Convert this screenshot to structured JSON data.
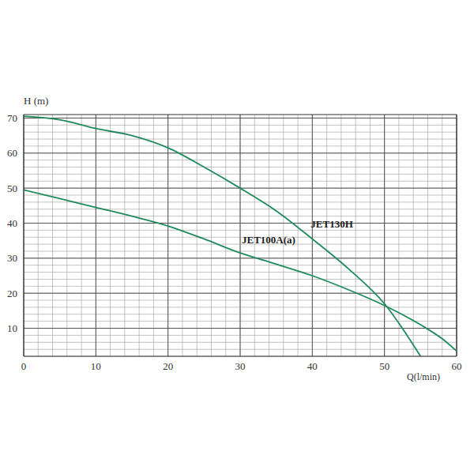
{
  "chart_data": {
    "type": "line",
    "x_label": "Q(l/min)",
    "y_label": "H (m)",
    "x": [
      0,
      5,
      10,
      15,
      20,
      25,
      30,
      35,
      40,
      45,
      50,
      55,
      58,
      60
    ],
    "series": [
      {
        "name": "JET130H",
        "color": "#1f8a5c",
        "values": [
          70.5,
          69.5,
          67,
          65,
          61.5,
          56,
          50,
          43.5,
          35.5,
          27,
          17,
          2,
          null,
          null
        ]
      },
      {
        "name": "JET100A(a)",
        "color": "#1f8a5c",
        "values": [
          49.5,
          47,
          44.5,
          42,
          39.2,
          35.5,
          31.5,
          28.3,
          25,
          21,
          16.5,
          11,
          7,
          3.5
        ]
      }
    ],
    "xlim": [
      0,
      60
    ],
    "ylim": [
      2,
      71
    ],
    "xticks": [
      0,
      10,
      20,
      30,
      40,
      50,
      60
    ],
    "yticks": [
      10,
      20,
      30,
      40,
      50,
      60,
      70
    ],
    "grid": true,
    "legend": false
  }
}
